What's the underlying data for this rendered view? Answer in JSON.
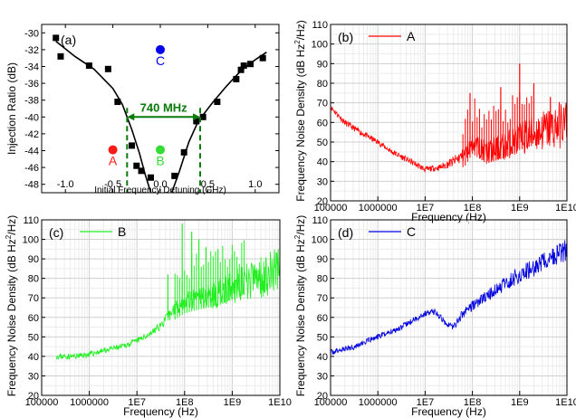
{
  "panel_a": {
    "label": "(a)",
    "xlabel": "Initial Frequency Detuning (GHz)",
    "ylabel": "Injection Ratio (dB)",
    "xlim": [
      -1.25,
      1.25
    ],
    "ylim": [
      -49,
      -29
    ],
    "xticks": [
      -1.0,
      -0.5,
      0.0,
      0.5,
      1.0
    ],
    "xtick_labels": [
      "-1.0",
      "-0.5",
      "0.0",
      "0.5",
      "1.0"
    ],
    "yticks": [
      -48,
      -46,
      -44,
      -42,
      -40,
      -38,
      -36,
      -34,
      -32,
      -30
    ],
    "ytick_labels": [
      "-48",
      "-46",
      "-44",
      "-42",
      "-40",
      "-38",
      "-36",
      "-34",
      "-32",
      "-30"
    ],
    "points": [
      {
        "x": -1.1,
        "y": -30.6
      },
      {
        "x": -1.05,
        "y": -32.8
      },
      {
        "x": -0.75,
        "y": -33.9
      },
      {
        "x": -0.55,
        "y": -34.3
      },
      {
        "x": -0.45,
        "y": -38.2
      },
      {
        "x": -0.3,
        "y": -43.4
      },
      {
        "x": -0.25,
        "y": -45.8
      },
      {
        "x": -0.2,
        "y": -46.4
      },
      {
        "x": -0.1,
        "y": -47.2
      },
      {
        "x": 0.15,
        "y": -47.0
      },
      {
        "x": 0.25,
        "y": -44.2
      },
      {
        "x": 0.38,
        "y": -40.5
      },
      {
        "x": 0.45,
        "y": -40.0
      },
      {
        "x": 0.6,
        "y": -38.2
      },
      {
        "x": 0.8,
        "y": -35.5
      },
      {
        "x": 0.85,
        "y": -34.4
      },
      {
        "x": 0.88,
        "y": -33.9
      },
      {
        "x": 0.95,
        "y": -33.7
      },
      {
        "x": 1.08,
        "y": -33.0
      }
    ],
    "fit_left": [
      {
        "x": -1.1,
        "y": -31.0
      },
      {
        "x": -0.9,
        "y": -32.8
      },
      {
        "x": -0.7,
        "y": -34.3
      },
      {
        "x": -0.5,
        "y": -36.6
      },
      {
        "x": -0.4,
        "y": -38.5
      },
      {
        "x": -0.3,
        "y": -41.5
      },
      {
        "x": -0.22,
        "y": -44.3
      },
      {
        "x": -0.16,
        "y": -46.8
      },
      {
        "x": -0.1,
        "y": -49.0
      }
    ],
    "fit_right": [
      {
        "x": 0.12,
        "y": -49.0
      },
      {
        "x": 0.2,
        "y": -46.5
      },
      {
        "x": 0.3,
        "y": -43.0
      },
      {
        "x": 0.4,
        "y": -40.5
      },
      {
        "x": 0.55,
        "y": -38.3
      },
      {
        "x": 0.7,
        "y": -36.3
      },
      {
        "x": 0.85,
        "y": -34.5
      },
      {
        "x": 1.0,
        "y": -33.2
      },
      {
        "x": 1.12,
        "y": -32.3
      }
    ],
    "markers": [
      {
        "label": "A",
        "x": -0.5,
        "y": -43.9,
        "color": "#ff1a1a"
      },
      {
        "label": "B",
        "x": 0.0,
        "y": -43.9,
        "color": "#33dd33"
      },
      {
        "label": "C",
        "x": 0.0,
        "y": -32.0,
        "color": "#0000ee"
      }
    ],
    "bracket": {
      "x1": -0.35,
      "x2": 0.42,
      "y": -40.0,
      "label": "740 MHz",
      "color": "#0a7a0a"
    }
  },
  "fnd_axes": {
    "ylabel_main": "Frequency Noise Density (dB Hz",
    "ylabel_sup": "2",
    "ylabel_tail": "/Hz)",
    "xlabel": "Frequency (Hz)",
    "ylim": [
      20,
      110
    ],
    "yticks": [
      20,
      30,
      40,
      50,
      60,
      70,
      80,
      90,
      100,
      110
    ],
    "ytick_labels": [
      "20",
      "30",
      "40",
      "50",
      "60",
      "70",
      "80",
      "90",
      "100",
      "110"
    ],
    "xlog_range": [
      5,
      10
    ],
    "xticks_exp": [
      5,
      6,
      7,
      8,
      9,
      10
    ],
    "xtick_labels": [
      "100000",
      "1000000",
      "1E7",
      "1E8",
      "1E9",
      "1E10"
    ]
  },
  "panel_b": {
    "label": "(b)",
    "legend": "A",
    "color": "#ff0000"
  },
  "panel_c": {
    "label": "(c)",
    "legend": "B",
    "color": "#22ee22"
  },
  "panel_d": {
    "label": "(d)",
    "legend": "C",
    "color": "#0000dd"
  },
  "chart_data": [
    {
      "type": "scatter",
      "panel": "(a)",
      "xlabel": "Initial Frequency Detuning (GHz)",
      "ylabel": "Injection Ratio (dB)",
      "xlim": [
        -1.25,
        1.25
      ],
      "ylim": [
        -49,
        -29
      ],
      "annotation": "740 MHz"
    },
    {
      "type": "line",
      "panel": "(b)",
      "legend": "A",
      "xlabel": "Frequency (Hz)",
      "ylabel": "Frequency Noise Density (dB Hz2/Hz)",
      "x_scale": "log",
      "xlim": [
        100000,
        10000000000
      ],
      "ylim": [
        20,
        110
      ],
      "trend_x_exp": [
        5.0,
        5.3,
        5.7,
        6.0,
        6.3,
        6.7,
        7.0,
        7.3,
        7.6,
        7.85,
        8.0,
        8.3,
        8.7,
        9.0,
        9.5,
        10.0
      ],
      "trend_y": [
        68,
        60,
        54,
        50,
        45,
        40,
        36,
        37,
        40,
        44,
        50,
        45,
        48,
        52,
        56,
        60
      ],
      "spikes": [
        {
          "x_exp": 7.95,
          "y": 75
        },
        {
          "x_exp": 8.6,
          "y": 78
        },
        {
          "x_exp": 9.0,
          "y": 90
        },
        {
          "x_exp": 9.3,
          "y": 80
        },
        {
          "x_exp": 9.65,
          "y": 73
        }
      ]
    },
    {
      "type": "line",
      "panel": "(c)",
      "legend": "B",
      "xlabel": "Frequency (Hz)",
      "ylabel": "Frequency Noise Density (dB Hz2/Hz)",
      "x_scale": "log",
      "xlim": [
        100000,
        10000000000
      ],
      "ylim": [
        20,
        110
      ],
      "trend_x_exp": [
        5.3,
        5.7,
        6.0,
        6.3,
        6.7,
        7.0,
        7.3,
        7.5,
        7.65,
        7.8,
        8.0,
        8.3,
        8.7,
        9.0,
        9.5,
        10.0
      ],
      "trend_y": [
        40,
        40,
        41,
        43,
        45,
        48,
        52,
        56,
        60,
        65,
        68,
        70,
        72,
        75,
        80,
        85
      ],
      "spikes": [
        {
          "x_exp": 7.65,
          "y": 82
        },
        {
          "x_exp": 7.95,
          "y": 108
        },
        {
          "x_exp": 8.15,
          "y": 104
        },
        {
          "x_exp": 8.3,
          "y": 100
        },
        {
          "x_exp": 8.45,
          "y": 96
        },
        {
          "x_exp": 8.7,
          "y": 95
        },
        {
          "x_exp": 9.0,
          "y": 92
        }
      ]
    },
    {
      "type": "line",
      "panel": "(d)",
      "legend": "C",
      "xlabel": "Frequency (Hz)",
      "ylabel": "Frequency Noise Density (dB Hz2/Hz)",
      "x_scale": "log",
      "xlim": [
        100000,
        10000000000
      ],
      "ylim": [
        20,
        110
      ],
      "trend_x_exp": [
        5.0,
        5.5,
        6.0,
        6.5,
        7.0,
        7.2,
        7.4,
        7.6,
        7.8,
        8.0,
        8.5,
        9.0,
        9.5,
        10.0
      ],
      "trend_y": [
        42,
        45,
        50,
        55,
        62,
        63,
        58,
        55,
        62,
        66,
        74,
        82,
        88,
        95
      ],
      "spikes": []
    }
  ]
}
